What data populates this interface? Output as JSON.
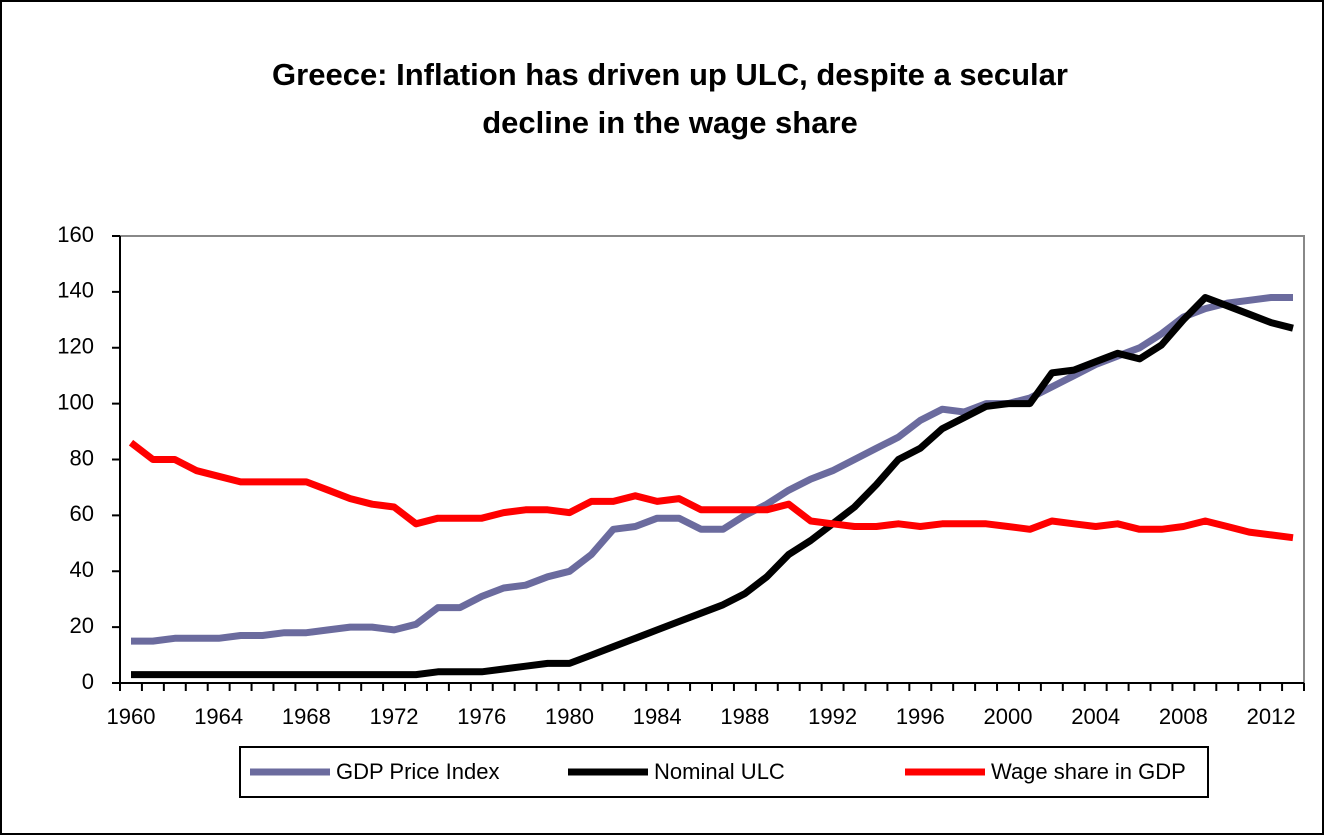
{
  "chart_data": {
    "type": "line",
    "title": [
      "Greece: Inflation has driven up ULC, despite a secular",
      "decline in the wage share"
    ],
    "categories": [
      "1960",
      null,
      null,
      null,
      "1964",
      null,
      null,
      null,
      "1968",
      null,
      null,
      null,
      "1972",
      null,
      null,
      null,
      "1976",
      null,
      null,
      null,
      "1980",
      null,
      null,
      null,
      "1984",
      null,
      null,
      null,
      "1988",
      null,
      null,
      null,
      "1992",
      null,
      null,
      null,
      "1996",
      null,
      null,
      null,
      "2000",
      null,
      null,
      null,
      "2004",
      null,
      null,
      null,
      "2008",
      null,
      null,
      null,
      "2012",
      null
    ],
    "series": [
      {
        "name": "GDP Price Index",
        "color": "#6b6b9e",
        "values": [
          15,
          15,
          16,
          16,
          16,
          17,
          17,
          18,
          18,
          19,
          20,
          20,
          19,
          21,
          27,
          27,
          31,
          34,
          35,
          38,
          40,
          46,
          55,
          56,
          59,
          59,
          55,
          55,
          60,
          64,
          69,
          73,
          76,
          80,
          84,
          88,
          94,
          98,
          97,
          100,
          100,
          102,
          106,
          110,
          114,
          117,
          120,
          125,
          131,
          134,
          136,
          137,
          138,
          138
        ]
      },
      {
        "name": "Nominal ULC",
        "color": "#000000",
        "values": [
          3,
          3,
          3,
          3,
          3,
          3,
          3,
          3,
          3,
          3,
          3,
          3,
          3,
          3,
          4,
          4,
          4,
          5,
          6,
          7,
          7,
          10,
          13,
          16,
          19,
          22,
          25,
          28,
          32,
          38,
          46,
          51,
          57,
          63,
          71,
          80,
          84,
          91,
          95,
          99,
          100,
          100,
          111,
          112,
          115,
          118,
          116,
          121,
          130,
          138,
          135,
          132,
          129,
          127
        ]
      },
      {
        "name": "Wage share in GDP",
        "color": "#ff0000",
        "values": [
          86,
          80,
          80,
          76,
          74,
          72,
          72,
          72,
          72,
          69,
          66,
          64,
          63,
          57,
          59,
          59,
          59,
          61,
          62,
          62,
          61,
          65,
          65,
          67,
          65,
          66,
          62,
          62,
          62,
          62,
          64,
          58,
          57,
          56,
          56,
          57,
          56,
          57,
          57,
          57,
          56,
          55,
          58,
          57,
          56,
          57,
          55,
          55,
          56,
          58,
          56,
          54,
          53,
          52
        ]
      }
    ],
    "ylim": [
      0,
      160
    ],
    "yticks": [
      0,
      20,
      40,
      60,
      80,
      100,
      120,
      140,
      160
    ],
    "legend": "bottom"
  }
}
